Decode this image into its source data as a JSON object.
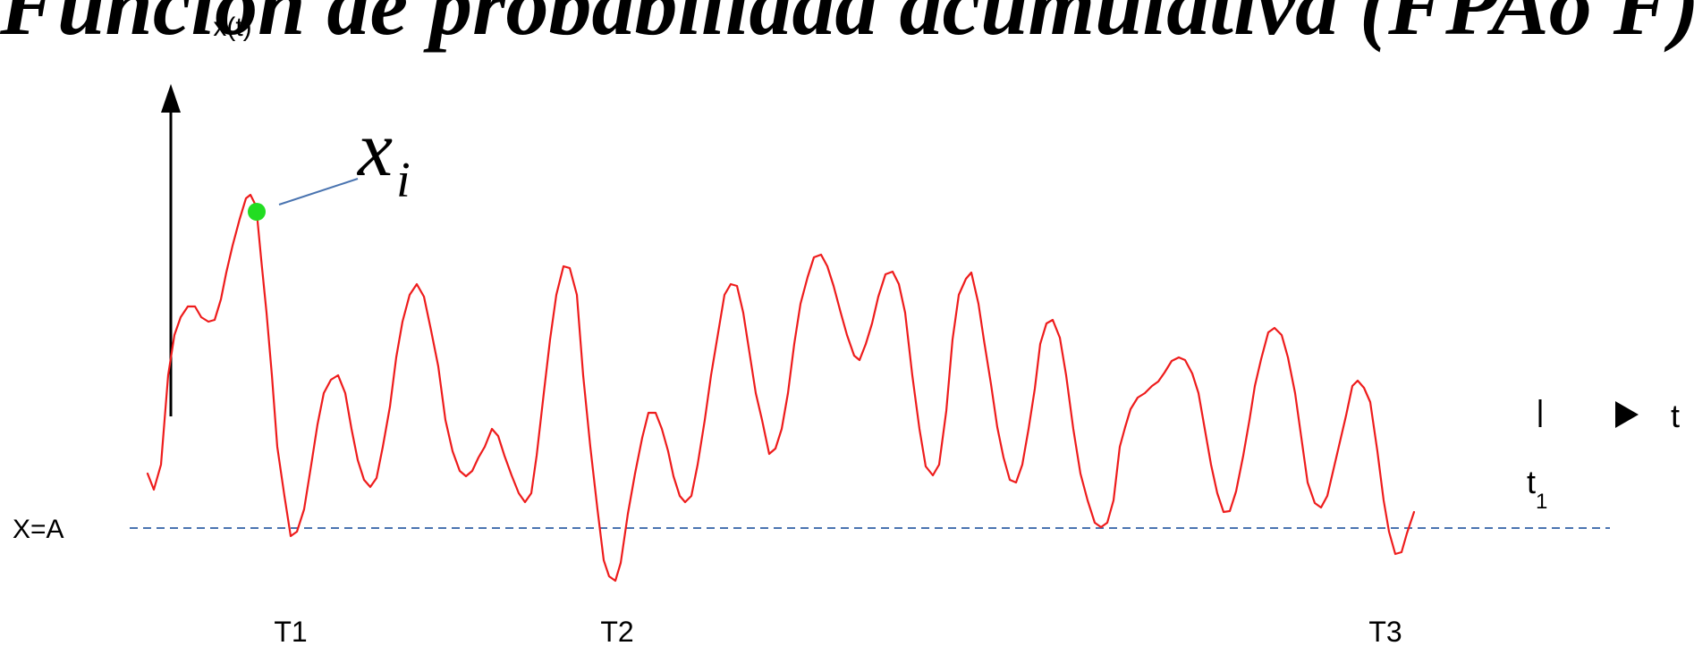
{
  "title": "Función de probabilidad acumulativa (FPAo F)",
  "labels": {
    "y_axis": "x(t)",
    "x_axis": "t",
    "t1_base": "t",
    "t1_sub": "1",
    "threshold": "X=A",
    "sample_base": "x",
    "sample_sub": "i",
    "T1": "T1",
    "T2": "T2",
    "T3": "T3"
  },
  "colors": {
    "signal": "#ee1c1c",
    "sample_point": "#22dd22",
    "threshold_line": "#4a74b0",
    "leader_line": "#4a74b0",
    "axis": "#000000"
  }
}
